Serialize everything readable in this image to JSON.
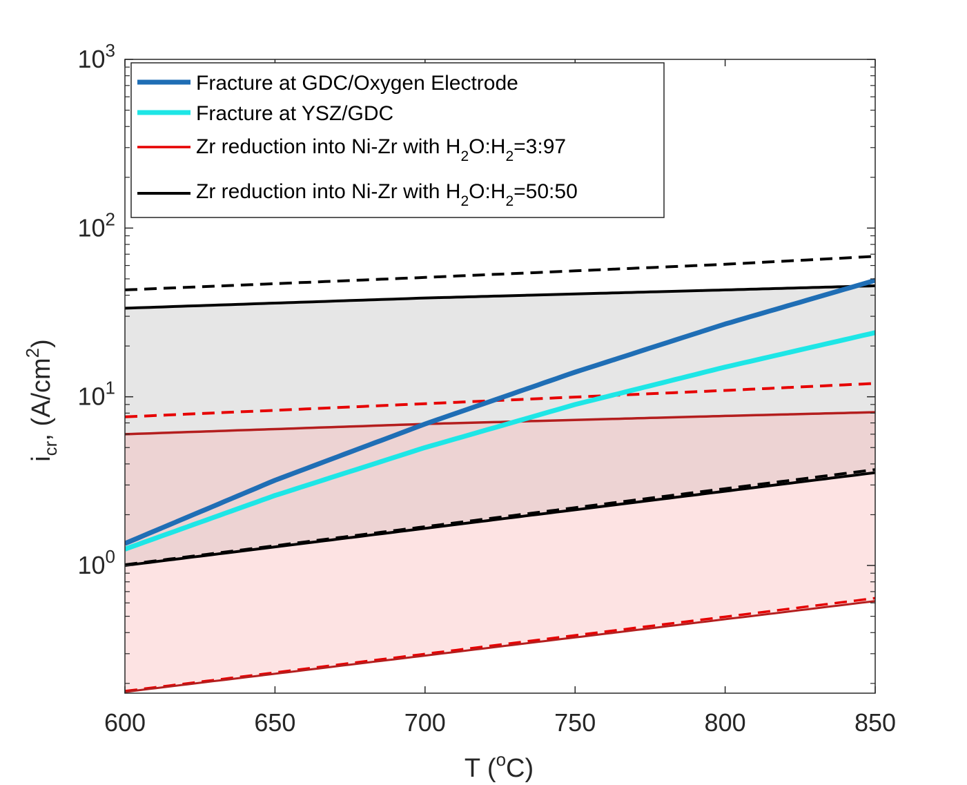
{
  "chart_data": {
    "type": "line",
    "xlabel": "T (",
    "xlabel_sup": "o",
    "xlabel_end": "C)",
    "ylabel_main": "i",
    "ylabel_sub": "cr",
    "ylabel_rest": ", (A/cm",
    "ylabel_sup": "2",
    "ylabel_end": ")",
    "xlim": [
      600,
      850
    ],
    "ylim": [
      0.175,
      1000
    ],
    "yscale": "log",
    "x_ticks": [
      600,
      650,
      700,
      750,
      800,
      850
    ],
    "x_tick_labels": [
      "600",
      "650",
      "700",
      "750",
      "800",
      "850"
    ],
    "y_ticks": [
      1,
      10,
      100,
      1000
    ],
    "y_tick_labels": [
      {
        "base": "10",
        "exp": "0"
      },
      {
        "base": "10",
        "exp": "1"
      },
      {
        "base": "10",
        "exp": "2"
      },
      {
        "base": "10",
        "exp": "3"
      }
    ],
    "legend": [
      {
        "label": "Fracture at GDC/Oxygen Electrode",
        "color": "#1f6eb5",
        "style": "thick"
      },
      {
        "label": "Fracture at YSZ/GDC",
        "color": "#1ee6e6",
        "style": "thick"
      },
      {
        "label": "Zr reduction into Ni-Zr with H",
        "sub1": "2",
        "mid": "O:H",
        "sub2": "2",
        "end": "=3:97",
        "color": "#e60000",
        "style": "thin"
      },
      {
        "label": "Zr reduction into Ni-Zr with H",
        "sub1": "2",
        "mid": "O:H",
        "sub2": "2",
        "end": "=50:50",
        "color": "#000000",
        "style": "thin"
      }
    ],
    "shaded_bands": [
      {
        "name": "black-band",
        "color": "#d9d9d9",
        "opacity": 0.65,
        "lower": {
          "x": [
            600,
            850
          ],
          "y": [
            1.0,
            3.55
          ]
        },
        "upper": {
          "x": [
            600,
            700,
            800,
            850
          ],
          "y": [
            33.5,
            38.5,
            43.0,
            45.5
          ]
        }
      },
      {
        "name": "red-band",
        "color": "#f9b6b6",
        "opacity": 0.38,
        "lower": {
          "x": [
            600,
            850
          ],
          "y": [
            0.178,
            0.615
          ]
        },
        "upper": {
          "x": [
            600,
            700,
            800,
            850
          ],
          "y": [
            6.0,
            6.9,
            7.7,
            8.1
          ]
        }
      }
    ],
    "series": [
      {
        "name": "Black upper dashed",
        "color": "#000000",
        "width": 4,
        "dash": "18,10",
        "x": [
          600,
          700,
          800,
          850
        ],
        "y": [
          43,
          51,
          61,
          68
        ]
      },
      {
        "name": "Black upper solid",
        "color": "#000000",
        "width": 4,
        "dash": "",
        "x": [
          600,
          700,
          800,
          850
        ],
        "y": [
          33.5,
          38.5,
          43.0,
          45.5
        ]
      },
      {
        "name": "Red upper dashed",
        "color": "#e60000",
        "width": 4,
        "dash": "18,10",
        "x": [
          600,
          700,
          800,
          850
        ],
        "y": [
          7.6,
          9.1,
          10.9,
          12.0
        ]
      },
      {
        "name": "Red upper solid",
        "color": "#b41e1e",
        "width": 3.5,
        "dash": "",
        "x": [
          600,
          700,
          800,
          850
        ],
        "y": [
          6.0,
          6.9,
          7.7,
          8.1
        ]
      },
      {
        "name": "Black lower dashed",
        "color": "#000000",
        "width": 4,
        "dash": "18,10",
        "x": [
          600,
          850
        ],
        "y": [
          1.01,
          3.7
        ]
      },
      {
        "name": "Black lower solid",
        "color": "#000000",
        "width": 4,
        "dash": "",
        "x": [
          600,
          850
        ],
        "y": [
          1.0,
          3.55
        ]
      },
      {
        "name": "Red lower dashed",
        "color": "#e60000",
        "width": 3.5,
        "dash": "18,10",
        "x": [
          600,
          850
        ],
        "y": [
          0.18,
          0.64
        ]
      },
      {
        "name": "Red lower solid",
        "color": "#b41e1e",
        "width": 3,
        "dash": "",
        "x": [
          600,
          850
        ],
        "y": [
          0.178,
          0.615
        ]
      },
      {
        "name": "Fracture at YSZ/GDC",
        "color": "#1ee6e6",
        "width": 7,
        "dash": "",
        "x": [
          600,
          650,
          700,
          750,
          800,
          850
        ],
        "y": [
          1.25,
          2.6,
          5.0,
          9.0,
          15.0,
          24.0
        ]
      },
      {
        "name": "Fracture at GDC/Oxygen Electrode",
        "color": "#1f6eb5",
        "width": 7,
        "dash": "",
        "x": [
          600,
          650,
          700,
          750,
          800,
          850
        ],
        "y": [
          1.35,
          3.2,
          6.9,
          14.0,
          27.0,
          49.0
        ]
      }
    ]
  }
}
